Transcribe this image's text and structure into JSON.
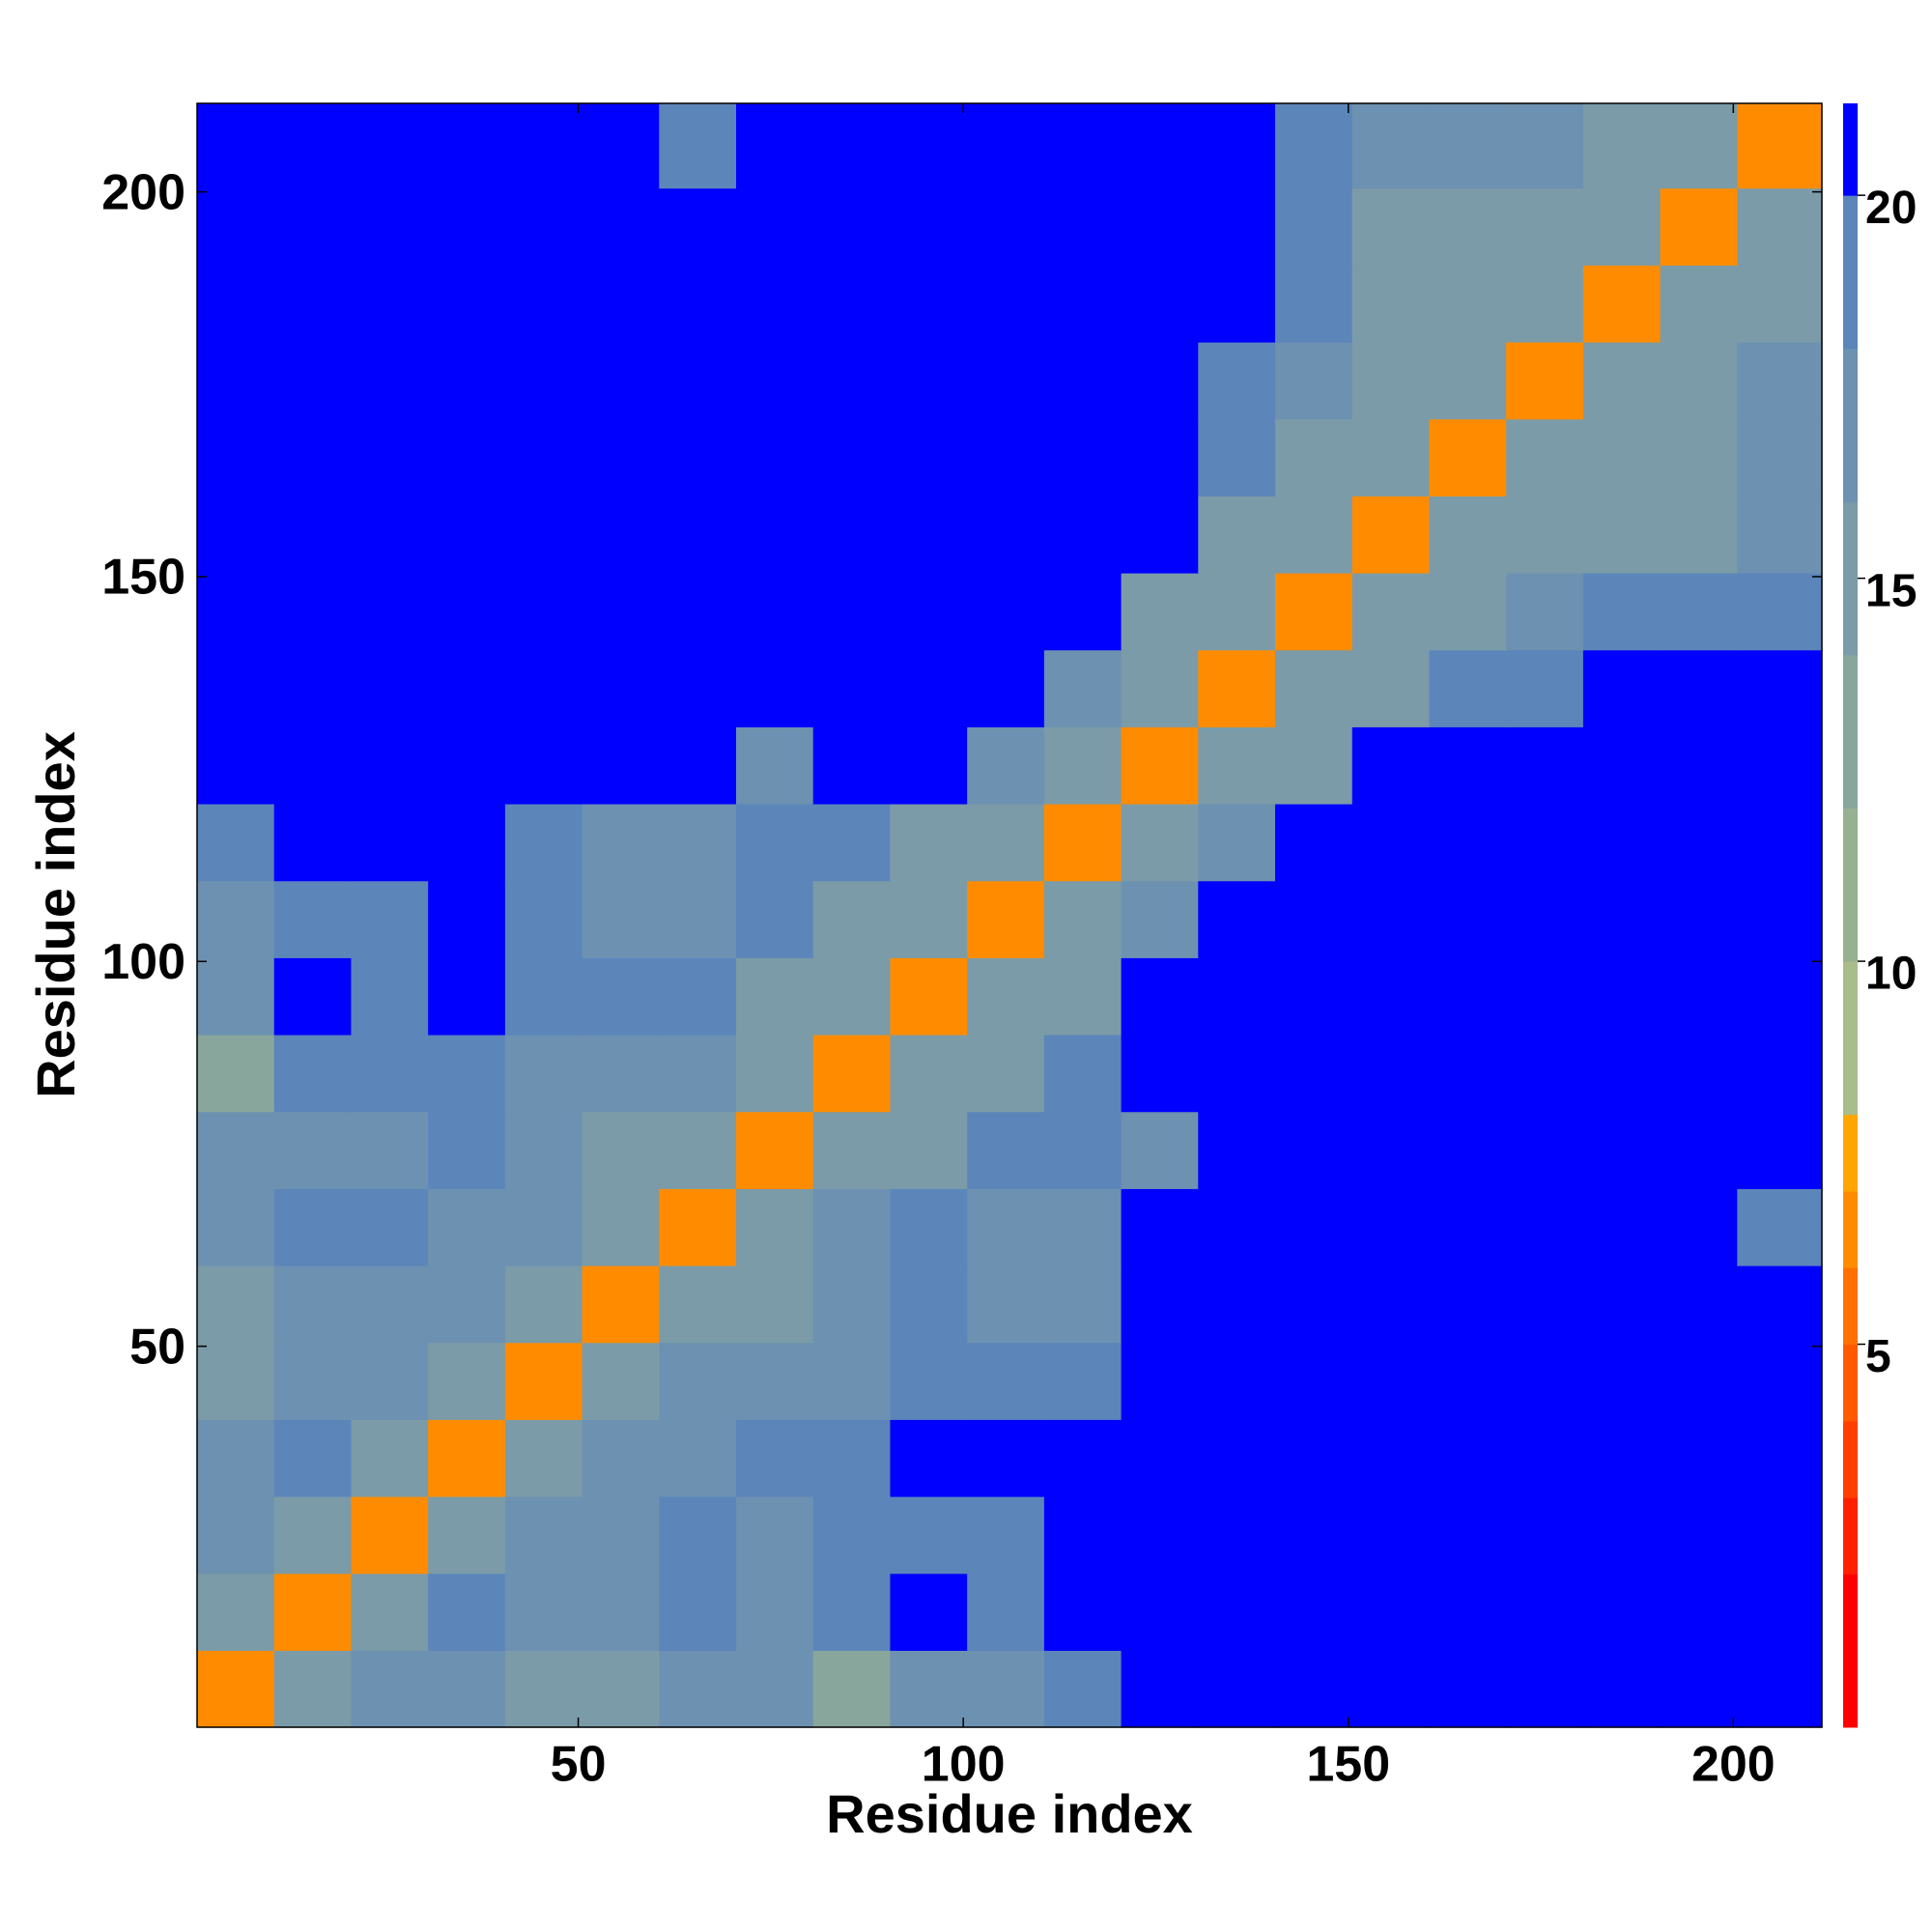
{
  "chart_data": {
    "type": "heatmap",
    "xlabel": "Residue index",
    "ylabel": "Residue index",
    "x_bins": [
      0.5,
      10.5,
      20.5,
      30.5,
      40.5,
      50.5,
      60.5,
      70.5,
      80.5,
      90.5,
      100.5,
      110.5,
      120.5,
      130.5,
      140.5,
      150.5,
      160.5,
      170.5,
      180.5,
      190.5,
      200.5,
      211.5
    ],
    "y_bins": [
      0.5,
      10.5,
      20.5,
      30.5,
      40.5,
      50.5,
      60.5,
      70.5,
      80.5,
      90.5,
      100.5,
      110.5,
      120.5,
      130.5,
      140.5,
      150.5,
      160.5,
      170.5,
      180.5,
      190.5,
      200.5,
      211.5
    ],
    "xlim": [
      0.5,
      211.5
    ],
    "ylim": [
      0.5,
      211.5
    ],
    "xticks": [
      50,
      100,
      150,
      200
    ],
    "yticks": [
      50,
      100,
      150,
      200
    ],
    "clim": [
      0,
      21.2
    ],
    "colorbar_ticks": [
      5,
      10,
      15,
      20
    ],
    "colorscale": [
      {
        "value": 0,
        "color": "#ff0000"
      },
      {
        "value": 2,
        "color": "#ff2000"
      },
      {
        "value": 3,
        "color": "#ff4000"
      },
      {
        "value": 4,
        "color": "#ff5a00"
      },
      {
        "value": 5,
        "color": "#ff7000"
      },
      {
        "value": 6,
        "color": "#ff8c00"
      },
      {
        "value": 7,
        "color": "#ffa500"
      },
      {
        "value": 8,
        "color": "#a9bd8b"
      },
      {
        "value": 10,
        "color": "#96b190"
      },
      {
        "value": 12,
        "color": "#89a69c"
      },
      {
        "value": 14,
        "color": "#7b9ba8"
      },
      {
        "value": 16,
        "color": "#6d91b1"
      },
      {
        "value": 18,
        "color": "#5c86ba"
      },
      {
        "value": 20,
        "color": "#0000ff"
      }
    ],
    "values": [
      [
        6,
        14,
        17,
        17,
        14,
        14,
        17,
        17,
        13,
        17,
        17,
        19,
        21,
        21,
        21,
        21,
        21,
        21,
        21,
        21,
        21
      ],
      [
        14,
        6,
        14,
        18,
        17,
        16,
        18,
        17,
        18,
        20,
        19,
        21,
        21,
        21,
        21,
        21,
        21,
        21,
        21,
        21,
        21
      ],
      [
        17,
        14,
        6,
        14,
        17,
        17,
        18,
        17,
        19,
        19,
        19,
        21,
        21,
        21,
        21,
        21,
        21,
        21,
        21,
        21,
        21
      ],
      [
        17,
        18,
        14,
        6,
        14,
        16,
        17,
        18,
        19,
        21,
        20,
        21,
        21,
        21,
        21,
        21,
        21,
        21,
        21,
        21,
        21
      ],
      [
        14,
        17,
        17,
        14,
        6,
        14,
        16,
        17,
        17,
        18,
        18,
        19,
        21,
        21,
        21,
        21,
        21,
        21,
        21,
        21,
        21
      ],
      [
        14,
        16,
        17,
        16,
        14,
        6,
        14,
        15,
        17,
        18,
        17,
        16,
        21,
        21,
        21,
        21,
        21,
        21,
        21,
        21,
        21
      ],
      [
        17,
        18,
        18,
        17,
        16,
        14,
        6,
        14,
        16,
        18,
        17,
        17,
        21,
        21,
        21,
        21,
        21,
        21,
        21,
        21,
        19
      ],
      [
        17,
        17,
        17,
        18,
        17,
        15,
        14,
        6,
        14,
        15,
        18,
        19,
        17,
        21,
        21,
        21,
        21,
        21,
        21,
        21,
        21
      ],
      [
        13,
        18,
        19,
        19,
        17,
        17,
        16,
        14,
        6,
        14,
        15,
        18,
        21,
        21,
        21,
        21,
        21,
        21,
        21,
        21,
        21
      ],
      [
        17,
        20,
        19,
        21,
        18,
        18,
        18,
        15,
        14,
        6,
        14,
        15,
        21,
        21,
        21,
        21,
        21,
        21,
        21,
        21,
        21
      ],
      [
        17,
        19,
        19,
        20,
        18,
        17,
        17,
        18,
        15,
        14,
        6,
        14,
        16,
        21,
        21,
        21,
        21,
        21,
        21,
        21,
        21
      ],
      [
        19,
        21,
        21,
        21,
        19,
        16,
        17,
        19,
        18,
        15,
        14,
        6,
        14,
        17,
        21,
        21,
        21,
        21,
        21,
        21,
        21
      ],
      [
        21,
        21,
        21,
        21,
        21,
        21,
        21,
        17,
        21,
        21,
        16,
        14,
        6,
        14,
        15,
        21,
        21,
        21,
        21,
        21,
        21
      ],
      [
        21,
        21,
        21,
        21,
        21,
        21,
        21,
        21,
        21,
        21,
        21,
        17,
        14,
        6,
        14,
        15,
        18,
        19,
        21,
        21,
        21
      ],
      [
        21,
        21,
        21,
        21,
        21,
        21,
        21,
        21,
        21,
        21,
        21,
        21,
        15,
        14,
        6,
        14,
        14,
        17,
        18,
        18,
        19
      ],
      [
        21,
        21,
        21,
        21,
        21,
        21,
        21,
        21,
        21,
        21,
        21,
        21,
        21,
        15,
        14,
        6,
        14,
        14,
        15,
        15,
        16
      ],
      [
        21,
        21,
        21,
        21,
        21,
        21,
        21,
        21,
        21,
        21,
        21,
        21,
        21,
        18,
        14,
        14,
        6,
        14,
        14,
        15,
        16
      ],
      [
        21,
        21,
        21,
        21,
        21,
        21,
        21,
        21,
        21,
        21,
        21,
        21,
        21,
        19,
        17,
        14,
        14,
        6,
        14,
        14,
        17
      ],
      [
        21,
        21,
        21,
        21,
        21,
        21,
        21,
        21,
        21,
        21,
        21,
        21,
        21,
        21,
        18,
        15,
        14,
        14,
        6,
        14,
        14
      ],
      [
        21,
        21,
        21,
        21,
        21,
        21,
        21,
        21,
        21,
        21,
        21,
        21,
        21,
        21,
        18,
        15,
        15,
        14,
        14,
        6,
        14
      ],
      [
        21,
        21,
        21,
        21,
        21,
        21,
        19,
        21,
        21,
        21,
        21,
        21,
        21,
        21,
        19,
        16,
        16,
        17,
        14,
        14,
        6
      ]
    ]
  }
}
